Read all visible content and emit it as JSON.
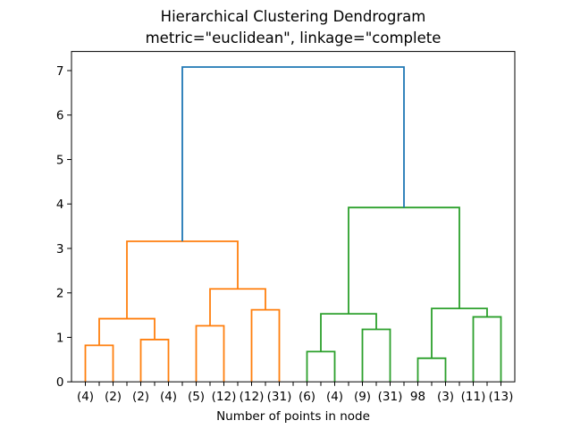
{
  "figure": {
    "background": "#ffffff"
  },
  "chart_data": {
    "type": "dendrogram",
    "title_line1": "Hierarchical Clustering Dendrogram",
    "title_line2": "metric=\"euclidean\", linkage=\"complete",
    "xlabel": "Number of points in node",
    "ylim": [
      0,
      7.43
    ],
    "yticks": [
      0,
      1,
      2,
      3,
      4,
      5,
      6,
      7
    ],
    "xtick_step_data_units": 5,
    "grid": false,
    "legend": null,
    "leaf_labels": [
      "(4)",
      "(2)",
      "(2)",
      "(4)",
      "(5)",
      "(12)",
      "(12)",
      "(31)",
      "(6)",
      "(4)",
      "(9)",
      "(31)",
      "98",
      "(3)",
      "(11)",
      "(13)"
    ],
    "colors": {
      "above_threshold": "#1f77b4",
      "cluster1": "#ff7f0e",
      "cluster2": "#2ca02c",
      "axes": "#000000"
    },
    "merges": [
      {
        "id": "A",
        "children": [
          "L0",
          "L1"
        ],
        "height": 0.82,
        "color": "cluster1"
      },
      {
        "id": "B",
        "children": [
          "L2",
          "L3"
        ],
        "height": 0.95,
        "color": "cluster1"
      },
      {
        "id": "C",
        "children": [
          "A",
          "B"
        ],
        "height": 1.42,
        "color": "cluster1"
      },
      {
        "id": "D",
        "children": [
          "L4",
          "L5"
        ],
        "height": 1.26,
        "color": "cluster1"
      },
      {
        "id": "E",
        "children": [
          "L6",
          "L7"
        ],
        "height": 1.62,
        "color": "cluster1"
      },
      {
        "id": "F",
        "children": [
          "D",
          "E"
        ],
        "height": 2.09,
        "color": "cluster1"
      },
      {
        "id": "G",
        "children": [
          "C",
          "F"
        ],
        "height": 3.16,
        "color": "cluster1"
      },
      {
        "id": "H",
        "children": [
          "L8",
          "L9"
        ],
        "height": 0.68,
        "color": "cluster2"
      },
      {
        "id": "I",
        "children": [
          "L10",
          "L11"
        ],
        "height": 1.18,
        "color": "cluster2"
      },
      {
        "id": "J",
        "children": [
          "H",
          "I"
        ],
        "height": 1.53,
        "color": "cluster2"
      },
      {
        "id": "K",
        "children": [
          "L12",
          "L13"
        ],
        "height": 0.53,
        "color": "cluster2"
      },
      {
        "id": "L",
        "children": [
          "L14",
          "L15"
        ],
        "height": 1.46,
        "color": "cluster2"
      },
      {
        "id": "M",
        "children": [
          "K",
          "L"
        ],
        "height": 1.65,
        "color": "cluster2"
      },
      {
        "id": "N",
        "children": [
          "J",
          "M"
        ],
        "height": 3.92,
        "color": "cluster2"
      },
      {
        "id": "O",
        "children": [
          "G",
          "N"
        ],
        "height": 7.08,
        "color": "above_threshold"
      }
    ]
  }
}
